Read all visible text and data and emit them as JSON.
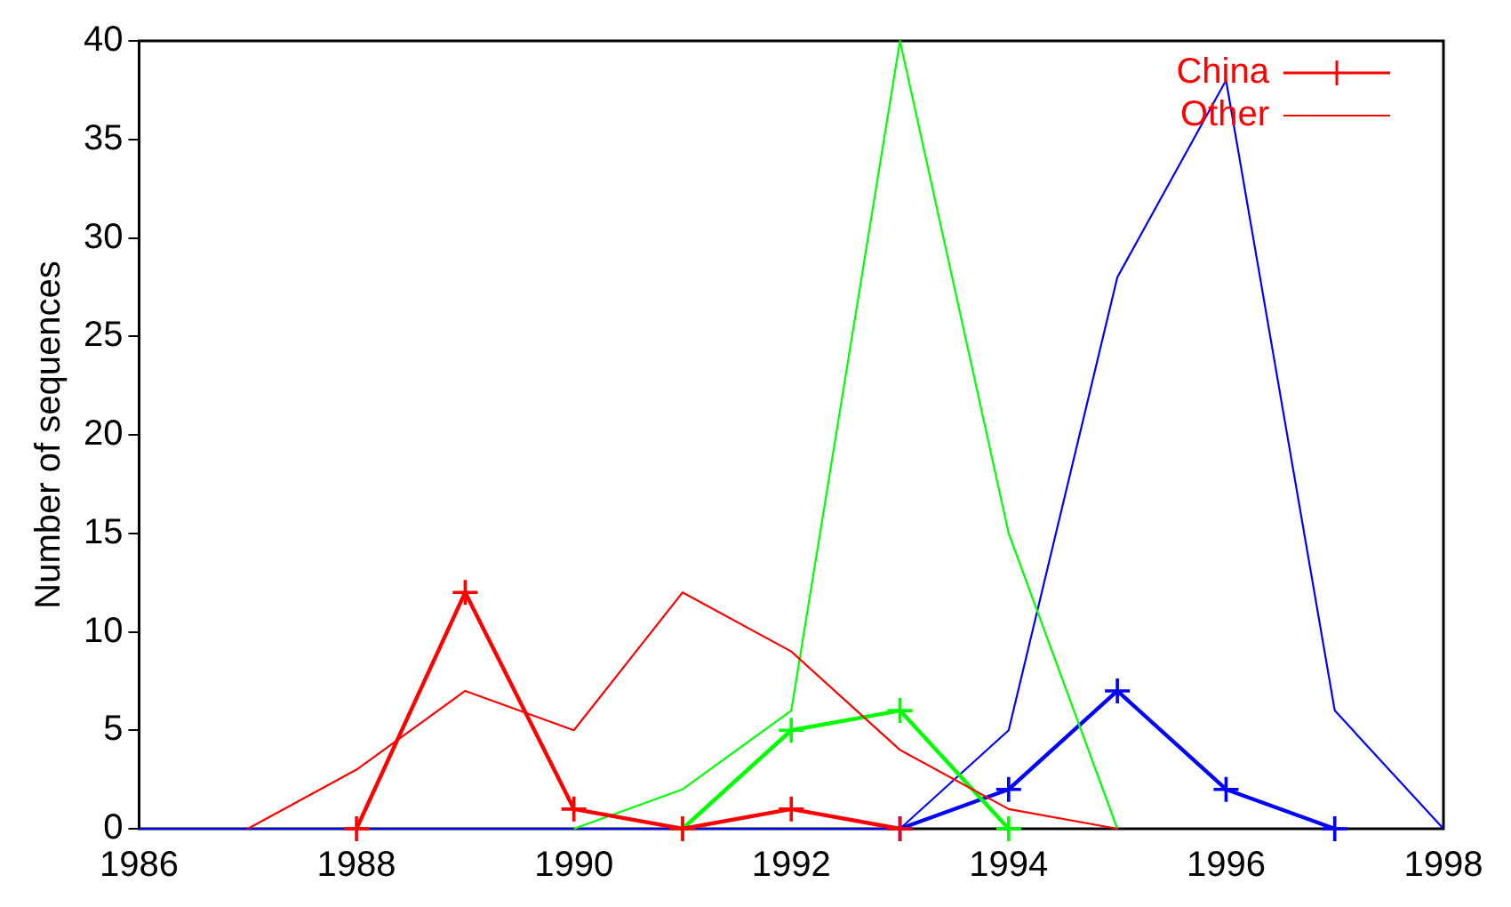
{
  "chart_data": {
    "type": "line",
    "ylabel": "Number of sequences",
    "xlim": [
      1986,
      1998
    ],
    "xticks": [
      1986,
      1988,
      1990,
      1992,
      1994,
      1996,
      1998
    ],
    "ylim": [
      0,
      40
    ],
    "yticks": [
      0,
      5,
      10,
      15,
      20,
      25,
      30,
      35,
      40
    ],
    "grid": false,
    "legend": "top right",
    "series": [
      {
        "name": "China",
        "color": "#ff0000",
        "marker": "cross",
        "x": [
          1988,
          1989,
          1990,
          1991,
          1992,
          1993
        ],
        "values": [
          0,
          12,
          1,
          0,
          1,
          0
        ]
      },
      {
        "name": "Other",
        "color": "#ff0000",
        "marker": "none",
        "x": [
          1987,
          1988,
          1989,
          1990,
          1991,
          1992,
          1993,
          1994,
          1995
        ],
        "values": [
          0,
          3,
          7,
          5,
          12,
          9,
          4,
          1,
          0
        ]
      },
      {
        "color": "#00ff00",
        "marker": "cross",
        "x": [
          1991,
          1992,
          1993,
          1994
        ],
        "values": [
          0,
          5,
          6,
          0
        ]
      },
      {
        "color": "#00ff00",
        "marker": "none",
        "x": [
          1990,
          1991,
          1992,
          1993,
          1994,
          1995
        ],
        "values": [
          0,
          2,
          6,
          40,
          15,
          0
        ]
      },
      {
        "color": "#0000ff",
        "marker": "cross",
        "x": [
          1993,
          1994,
          1995,
          1996,
          1997
        ],
        "values": [
          0,
          2,
          7,
          2,
          0
        ]
      },
      {
        "color": "#0000ff",
        "marker": "none",
        "x": [
          1986,
          1993,
          1994,
          1995,
          1996,
          1997,
          1998
        ],
        "values": [
          0,
          0,
          5,
          28,
          38,
          6,
          0
        ]
      }
    ]
  }
}
